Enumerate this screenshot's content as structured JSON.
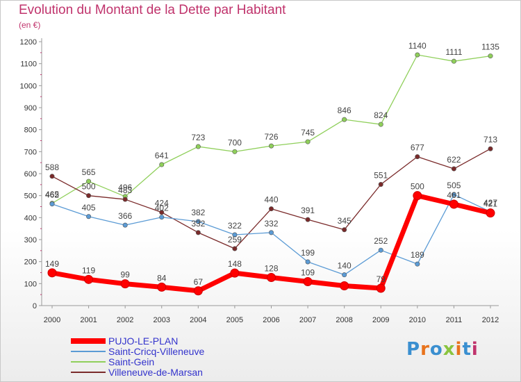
{
  "header": {
    "title": "Evolution du Montant de la Dette par Habitant",
    "subtitle": "(en €)"
  },
  "brand": {
    "text": "Proxiti",
    "colors": [
      "#3a8fd0",
      "#e8731c",
      "#3a8fd0",
      "#8ac43f",
      "#e8731c",
      "#3a8fd0",
      "#c0336c"
    ]
  },
  "chart_data": {
    "type": "line",
    "title": "Evolution du Montant de la Dette par Habitant",
    "subtitle": "(en €)",
    "xlabel": "",
    "ylabel": "",
    "x": [
      "2000",
      "2001",
      "2002",
      "2003",
      "2004",
      "2005",
      "2006",
      "2007",
      "2008",
      "2009",
      "2010",
      "2011",
      "2012"
    ],
    "ylim": [
      0,
      1200
    ],
    "yticks": [
      0,
      100,
      200,
      300,
      400,
      500,
      600,
      700,
      800,
      900,
      1000,
      1100,
      1200
    ],
    "grid": false,
    "legend_position": "bottom-left",
    "series": [
      {
        "name": "PUJO-LE-PLAN",
        "color": "#ff0000",
        "values": [
          149,
          119,
          99,
          84,
          67,
          148,
          128,
          109,
          90,
          79,
          500,
          461,
          421
        ],
        "labels": [
          "149",
          "119",
          "99",
          "84",
          "67",
          "148",
          "128",
          "109",
          "",
          "79",
          "500",
          "461",
          "421"
        ]
      },
      {
        "name": "Saint-Cricq-Villeneuve",
        "color": "#5b9bd5",
        "values": [
          462,
          405,
          366,
          402,
          382,
          322,
          332,
          199,
          140,
          252,
          189,
          505,
          427
        ],
        "labels": [
          "462",
          "405",
          "366",
          "402",
          "382",
          "322",
          "332",
          "199",
          "140",
          "252",
          "189",
          "505",
          "427"
        ]
      },
      {
        "name": "Saint-Gein",
        "color": "#8fcf5a",
        "values": [
          465,
          565,
          496,
          641,
          723,
          700,
          726,
          745,
          846,
          824,
          1140,
          1111,
          1135
        ],
        "labels": [
          "465",
          "565",
          "496",
          "641",
          "723",
          "700",
          "726",
          "745",
          "846",
          "824",
          "1140",
          "1111",
          "1135"
        ]
      },
      {
        "name": "Villeneuve-de-Marsan",
        "color": "#7a2a2a",
        "values": [
          588,
          500,
          483,
          424,
          332,
          259,
          440,
          391,
          345,
          551,
          677,
          622,
          713
        ],
        "labels": [
          "588",
          "500",
          "483",
          "424",
          "332",
          "259",
          "440",
          "391",
          "345",
          "551",
          "677",
          "622",
          "713"
        ]
      }
    ]
  }
}
